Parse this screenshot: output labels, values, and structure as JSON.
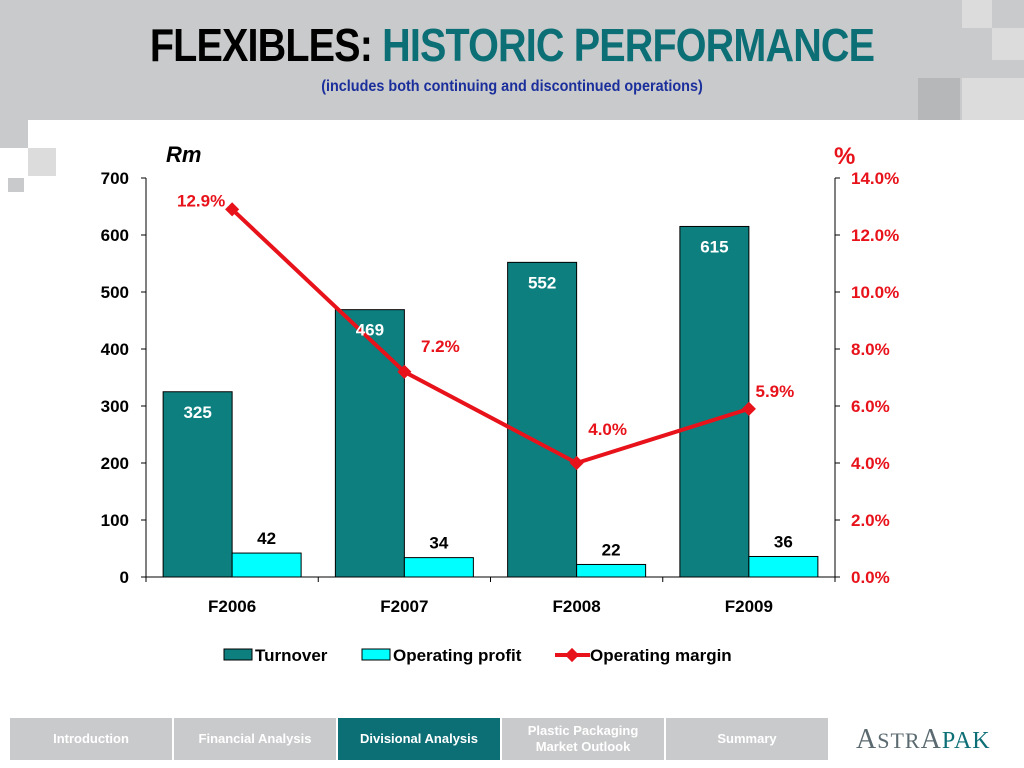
{
  "header": {
    "title_part1": "FLEXIBLES:",
    "title_part2": "HISTORIC PERFORMANCE",
    "subtitle": "(includes both continuing and discontinued operations)"
  },
  "chart_data": {
    "type": "bar",
    "categories": [
      "F2006",
      "F2007",
      "F2008",
      "F2009"
    ],
    "series": [
      {
        "name": "Turnover",
        "type": "bar",
        "axis": "left",
        "values": [
          325,
          469,
          552,
          615
        ],
        "color": "#0d7f7f"
      },
      {
        "name": "Operating profit",
        "type": "bar",
        "axis": "left",
        "values": [
          42,
          34,
          22,
          36
        ],
        "color": "#00ffff"
      },
      {
        "name": "Operating margin",
        "type": "line",
        "axis": "right",
        "values": [
          12.9,
          7.2,
          4.0,
          5.9
        ],
        "labels": [
          "12.9%",
          "7.2%",
          "4.0%",
          "5.9%"
        ],
        "color": "#e8121b"
      }
    ],
    "left_axis": {
      "label": "Rm",
      "range": [
        0,
        700
      ],
      "ticks": [
        "0",
        "100",
        "200",
        "300",
        "400",
        "500",
        "600",
        "700"
      ]
    },
    "right_axis": {
      "label": "%",
      "range": [
        0,
        14
      ],
      "ticks": [
        "0.0%",
        "2.0%",
        "4.0%",
        "6.0%",
        "8.0%",
        "10.0%",
        "12.0%",
        "14.0%"
      ]
    },
    "legend_position": "bottom",
    "grid": false
  },
  "nav": {
    "items": [
      {
        "label": "Introduction",
        "active": false
      },
      {
        "label": "Financial Analysis",
        "active": false
      },
      {
        "label": "Divisional Analysis",
        "active": true
      },
      {
        "label": "Plastic Packaging Market Outlook",
        "active": false
      },
      {
        "label": "Summary",
        "active": false
      }
    ]
  },
  "logo": {
    "text": "ASTRAPAK"
  }
}
